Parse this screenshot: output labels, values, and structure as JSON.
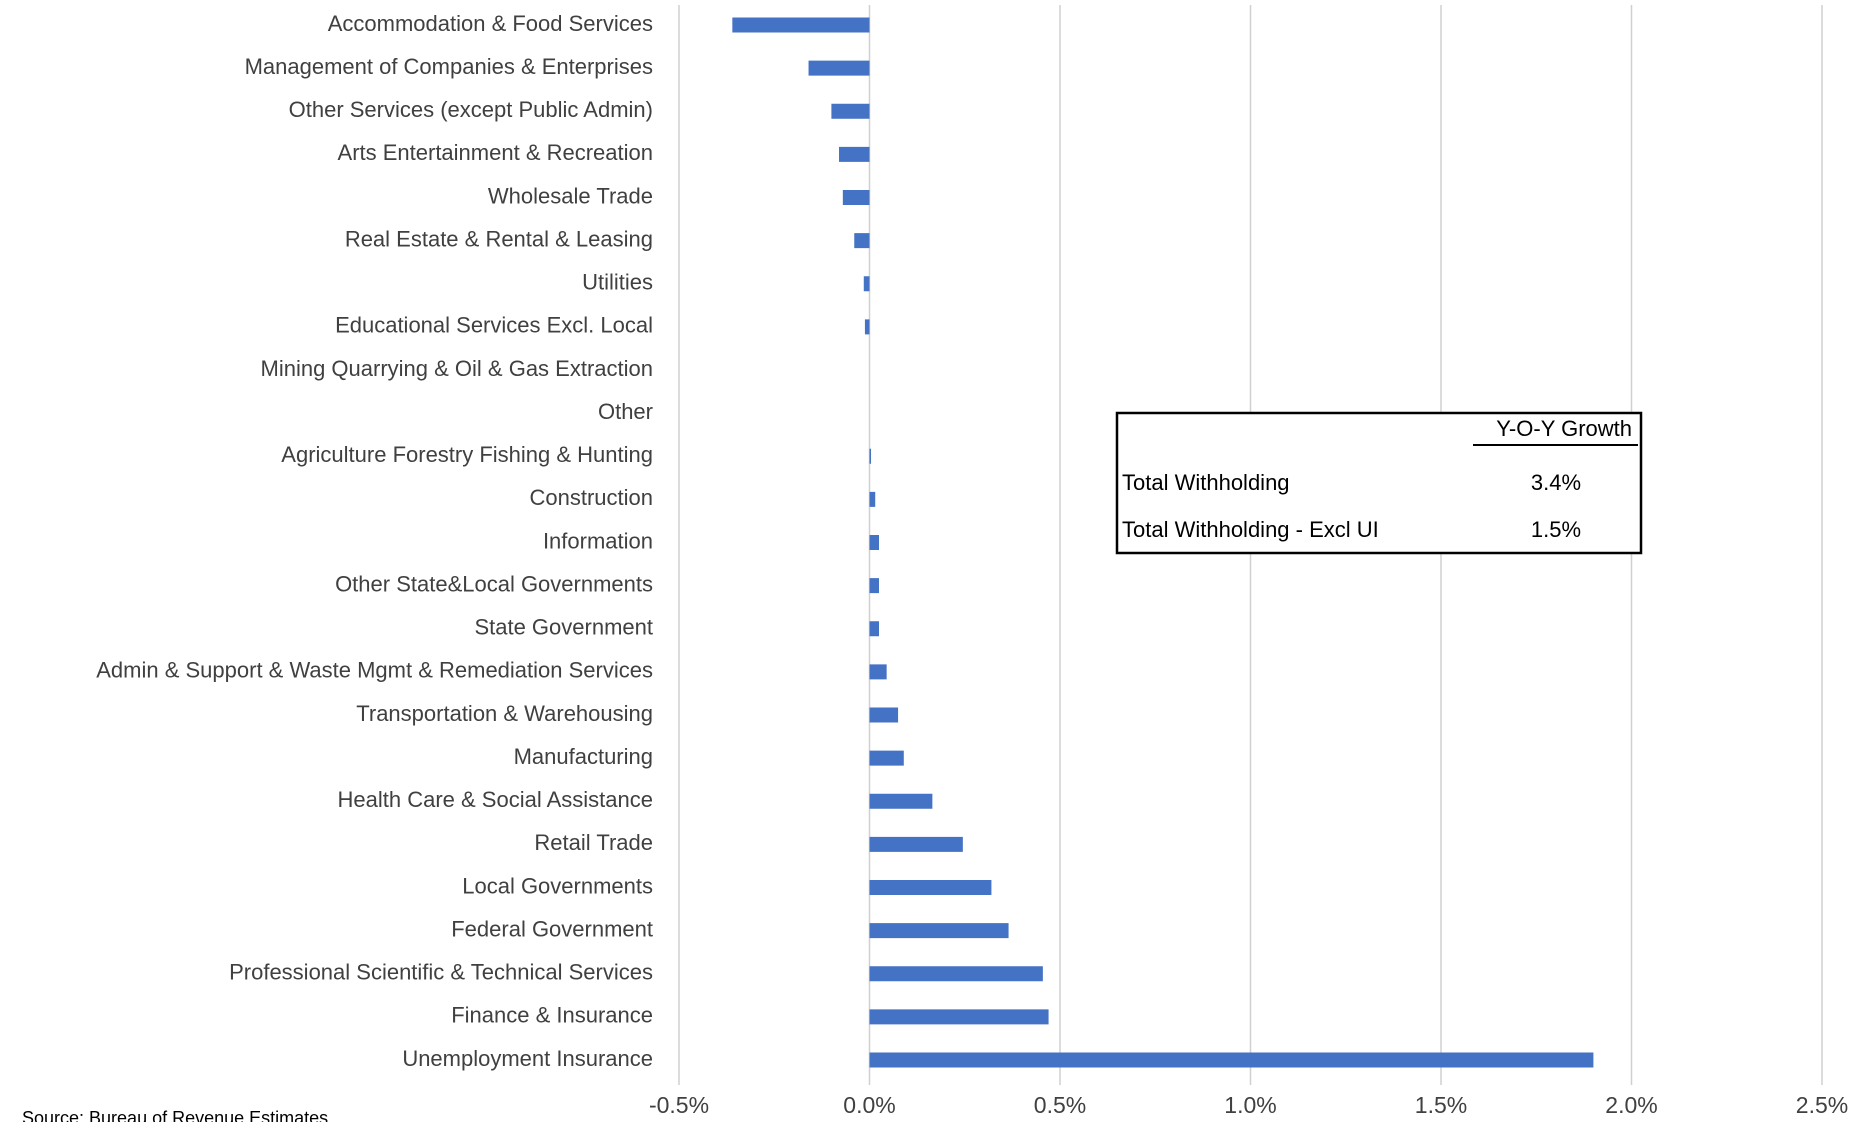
{
  "chart_data": {
    "type": "hbar",
    "categories": [
      "Accommodation & Food Services",
      "Management of Companies & Enterprises",
      "Other Services (except Public Admin)",
      "Arts Entertainment & Recreation",
      "Wholesale Trade",
      "Real Estate & Rental & Leasing",
      "Utilities",
      "Educational Services Excl. Local",
      "Mining Quarrying & Oil & Gas Extraction",
      "Other",
      "Agriculture Forestry Fishing & Hunting",
      "Construction",
      "Information",
      "Other State&Local Governments",
      "State Government",
      "Admin & Support & Waste Mgmt & Remediation Services",
      "Transportation & Warehousing",
      "Manufacturing",
      "Health Care & Social Assistance",
      "Retail Trade",
      "Local Governments",
      "Federal Government",
      "Professional Scientific & Technical Services",
      "Finance & Insurance",
      "Unemployment Insurance"
    ],
    "values": [
      -0.36,
      -0.16,
      -0.1,
      -0.08,
      -0.07,
      -0.04,
      -0.015,
      -0.012,
      0,
      0,
      0.004,
      0.015,
      0.025,
      0.025,
      0.025,
      0.045,
      0.075,
      0.09,
      0.165,
      0.245,
      0.32,
      0.365,
      0.455,
      0.47,
      1.9
    ],
    "color": "#4472c4",
    "xlim": [
      -0.5,
      2.5
    ],
    "xticks": [
      {
        "value": -0.5,
        "label": "-0.5%"
      },
      {
        "value": 0,
        "label": "0.0%"
      },
      {
        "value": 0.5,
        "label": "0.5%"
      },
      {
        "value": 1,
        "label": "1.0%"
      },
      {
        "value": 1.5,
        "label": "1.5%"
      },
      {
        "value": 2,
        "label": "2.0%"
      },
      {
        "value": 2.5,
        "label": "2.5%"
      }
    ],
    "grid": true,
    "source": "Source: Bureau of Revenue Estimates",
    "table": {
      "header": "Y-O-Y Growth",
      "rows": [
        [
          "Total Withholding",
          "3.4%"
        ],
        [
          "Total Withholding - Excl UI",
          "1.5%"
        ]
      ]
    }
  }
}
